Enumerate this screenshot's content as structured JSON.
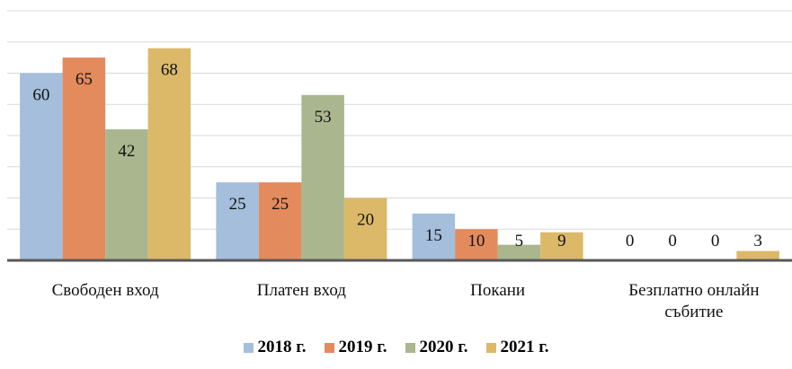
{
  "chart_data": {
    "type": "bar",
    "categories": [
      "Свободен вход",
      "Платен вход",
      "Покани",
      "Безплатно онлайн събитие"
    ],
    "series": [
      {
        "name": "2018 г.",
        "color": "#a4bedb",
        "values": [
          60,
          25,
          15,
          0
        ]
      },
      {
        "name": "2019 г.",
        "color": "#e38b5d",
        "values": [
          65,
          25,
          10,
          0
        ]
      },
      {
        "name": "2020 г.",
        "color": "#aab68e",
        "values": [
          42,
          53,
          5,
          0
        ]
      },
      {
        "name": "2021 г.",
        "color": "#dcb968",
        "values": [
          68,
          20,
          9,
          3
        ]
      }
    ],
    "ylim": [
      0,
      80
    ],
    "yticks": [
      0,
      10,
      20,
      30,
      40,
      50,
      60,
      70,
      80
    ],
    "grid": true,
    "legend": "bottom"
  }
}
